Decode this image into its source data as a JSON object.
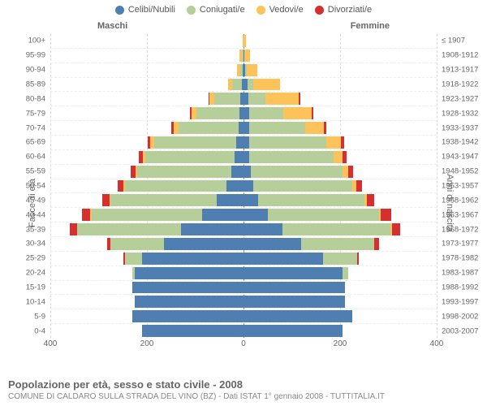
{
  "legend": {
    "items": [
      {
        "label": "Celibi/Nubili",
        "color": "#4f7fb0"
      },
      {
        "label": "Coniugati/e",
        "color": "#b6ce9a"
      },
      {
        "label": "Vedovi/e",
        "color": "#fdc35a"
      },
      {
        "label": "Divorziati/e",
        "color": "#d62f2f"
      }
    ]
  },
  "columns": {
    "male": "Maschi",
    "female": "Femmine"
  },
  "axes": {
    "left_title": "Fasce di età",
    "right_title": "Anni di nascita",
    "xmax": 400,
    "xtick_step": 200,
    "xtick_labels_left": [
      "400",
      "200"
    ],
    "xtick_center": "0",
    "xtick_labels_right": [
      "200",
      "400"
    ],
    "grid_color": "#dddddd"
  },
  "colors": {
    "celibi": "#4f7fb0",
    "coniugati": "#b6ce9a",
    "vedovi": "#fdc35a",
    "divorziati": "#d62f2f",
    "background": "#ffffff",
    "text": "#666666"
  },
  "footer": {
    "title": "Popolazione per età, sesso e stato civile - 2008",
    "subtitle": "COMUNE DI CALDARO SULLA STRADA DEL VINO (BZ) - Dati ISTAT 1° gennaio 2008 - TUTTITALIA.IT"
  },
  "age_labels": [
    "100+",
    "95-99",
    "90-94",
    "85-89",
    "80-84",
    "75-79",
    "70-74",
    "65-69",
    "60-64",
    "55-59",
    "50-54",
    "45-49",
    "40-44",
    "35-39",
    "30-34",
    "25-29",
    "20-24",
    "15-19",
    "10-14",
    "5-9",
    "0-4"
  ],
  "birth_labels": [
    "≤ 1907",
    "1908-1912",
    "1913-1917",
    "1918-1922",
    "1923-1927",
    "1928-1932",
    "1933-1937",
    "1938-1942",
    "1943-1947",
    "1948-1952",
    "1953-1957",
    "1958-1962",
    "1963-1967",
    "1968-1972",
    "1973-1977",
    "1978-1982",
    "1983-1987",
    "1988-1992",
    "1993-1997",
    "1998-2002",
    "2003-2007"
  ],
  "rows": [
    {
      "m": {
        "cel": 0,
        "con": 0,
        "ved": 2,
        "div": 0
      },
      "f": {
        "cel": 0,
        "con": 0,
        "ved": 5,
        "div": 0
      }
    },
    {
      "m": {
        "cel": 0,
        "con": 3,
        "ved": 5,
        "div": 0
      },
      "f": {
        "cel": 2,
        "con": 0,
        "ved": 12,
        "div": 0
      }
    },
    {
      "m": {
        "cel": 2,
        "con": 5,
        "ved": 6,
        "div": 0
      },
      "f": {
        "cel": 4,
        "con": 3,
        "ved": 22,
        "div": 0
      }
    },
    {
      "m": {
        "cel": 4,
        "con": 20,
        "ved": 8,
        "div": 0
      },
      "f": {
        "cel": 8,
        "con": 12,
        "ved": 55,
        "div": 0
      }
    },
    {
      "m": {
        "cel": 6,
        "con": 55,
        "ved": 10,
        "div": 2
      },
      "f": {
        "cel": 10,
        "con": 35,
        "ved": 70,
        "div": 2
      }
    },
    {
      "m": {
        "cel": 8,
        "con": 90,
        "ved": 10,
        "div": 3
      },
      "f": {
        "cel": 12,
        "con": 70,
        "ved": 60,
        "div": 3
      }
    },
    {
      "m": {
        "cel": 10,
        "con": 125,
        "ved": 10,
        "div": 4
      },
      "f": {
        "cel": 12,
        "con": 115,
        "ved": 40,
        "div": 4
      }
    },
    {
      "m": {
        "cel": 15,
        "con": 170,
        "ved": 8,
        "div": 6
      },
      "f": {
        "cel": 12,
        "con": 160,
        "ved": 30,
        "div": 6
      }
    },
    {
      "m": {
        "cel": 18,
        "con": 185,
        "ved": 6,
        "div": 8
      },
      "f": {
        "cel": 12,
        "con": 175,
        "ved": 18,
        "div": 8
      }
    },
    {
      "m": {
        "cel": 25,
        "con": 195,
        "ved": 4,
        "div": 10
      },
      "f": {
        "cel": 15,
        "con": 190,
        "ved": 12,
        "div": 10
      }
    },
    {
      "m": {
        "cel": 35,
        "con": 210,
        "ved": 3,
        "div": 12
      },
      "f": {
        "cel": 20,
        "con": 205,
        "ved": 8,
        "div": 12
      }
    },
    {
      "m": {
        "cel": 55,
        "con": 220,
        "ved": 2,
        "div": 15
      },
      "f": {
        "cel": 30,
        "con": 220,
        "ved": 5,
        "div": 15
      }
    },
    {
      "m": {
        "cel": 85,
        "con": 230,
        "ved": 2,
        "div": 18
      },
      "f": {
        "cel": 50,
        "con": 230,
        "ved": 4,
        "div": 22
      }
    },
    {
      "m": {
        "cel": 130,
        "con": 215,
        "ved": 0,
        "div": 15
      },
      "f": {
        "cel": 80,
        "con": 225,
        "ved": 2,
        "div": 18
      }
    },
    {
      "m": {
        "cel": 165,
        "con": 110,
        "ved": 0,
        "div": 8
      },
      "f": {
        "cel": 120,
        "con": 150,
        "ved": 0,
        "div": 10
      }
    },
    {
      "m": {
        "cel": 210,
        "con": 35,
        "ved": 0,
        "div": 3
      },
      "f": {
        "cel": 165,
        "con": 70,
        "ved": 0,
        "div": 4
      }
    },
    {
      "m": {
        "cel": 225,
        "con": 5,
        "ved": 0,
        "div": 0
      },
      "f": {
        "cel": 205,
        "con": 12,
        "ved": 0,
        "div": 0
      }
    },
    {
      "m": {
        "cel": 230,
        "con": 0,
        "ved": 0,
        "div": 0
      },
      "f": {
        "cel": 210,
        "con": 0,
        "ved": 0,
        "div": 0
      }
    },
    {
      "m": {
        "cel": 225,
        "con": 0,
        "ved": 0,
        "div": 0
      },
      "f": {
        "cel": 210,
        "con": 0,
        "ved": 0,
        "div": 0
      }
    },
    {
      "m": {
        "cel": 230,
        "con": 0,
        "ved": 0,
        "div": 0
      },
      "f": {
        "cel": 225,
        "con": 0,
        "ved": 0,
        "div": 0
      }
    },
    {
      "m": {
        "cel": 210,
        "con": 0,
        "ved": 0,
        "div": 0
      },
      "f": {
        "cel": 205,
        "con": 0,
        "ved": 0,
        "div": 0
      }
    }
  ],
  "chart_type": "population-pyramid"
}
